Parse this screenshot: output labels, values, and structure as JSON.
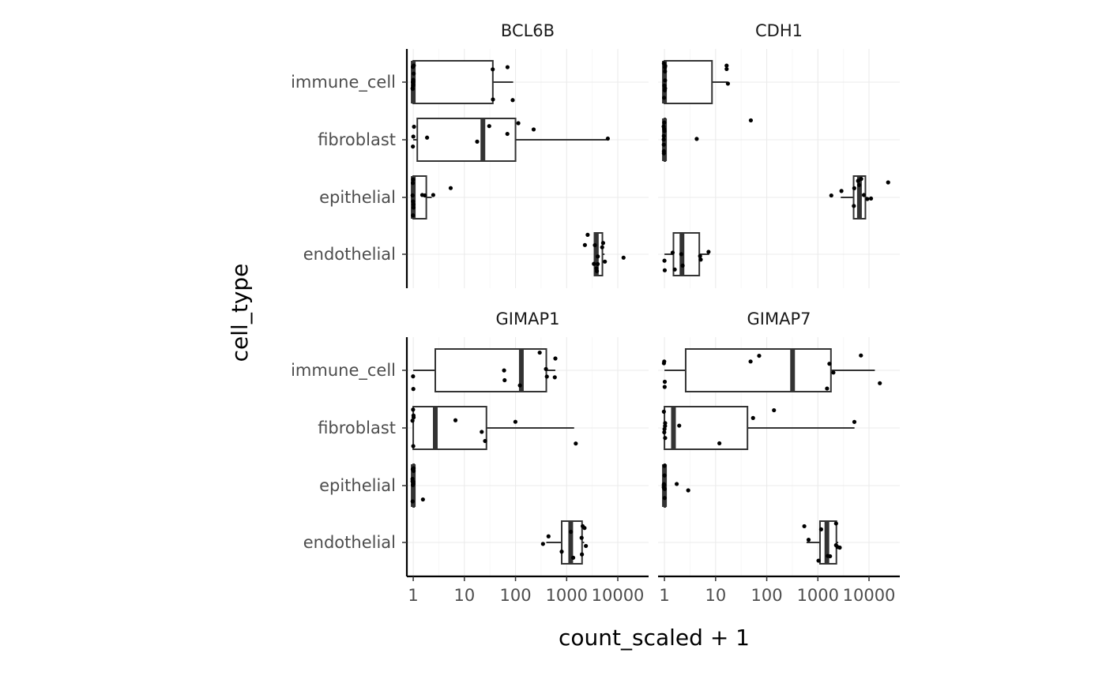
{
  "chart_data": {
    "type": "boxplot",
    "xlabel": "count_scaled + 1",
    "ylabel": "cell_type",
    "x_scale": "log10",
    "xlim": [
      0.75,
      40000
    ],
    "x_ticks": [
      1,
      10,
      100,
      1000,
      10000
    ],
    "x_tick_labels": [
      "1",
      "10",
      "100",
      "1000",
      "10000"
    ],
    "categories": [
      "immune_cell",
      "fibroblast",
      "epithelial",
      "endothelial"
    ],
    "grid": true,
    "panels": [
      {
        "title": "BCL6B",
        "boxes": [
          {
            "category": "immune_cell",
            "lower_whisker": 1,
            "q1": 1,
            "median": 1,
            "q3": 36,
            "upper_whisker": 90,
            "points": [
              1,
              1,
              1,
              1,
              1,
              1,
              1,
              1,
              1,
              1,
              37,
              35,
              70,
              90
            ]
          },
          {
            "category": "fibroblast",
            "lower_whisker": 1,
            "q1": 1.2,
            "median": 23,
            "q3": 100,
            "upper_whisker": 6000,
            "points": [
              1,
              1,
              1,
              1.9,
              18,
              30,
              70,
              110,
              220,
              6500
            ]
          },
          {
            "category": "epithelial",
            "lower_whisker": 1,
            "q1": 1,
            "median": 1,
            "q3": 1.8,
            "upper_whisker": 2.3,
            "points": [
              1,
              1,
              1,
              1,
              1,
              1,
              1,
              1.5,
              2.4,
              1.7,
              5.5
            ]
          },
          {
            "category": "endothelial",
            "lower_whisker": 3500,
            "q1": 3500,
            "median": 3800,
            "q3": 5000,
            "upper_whisker": 5500,
            "points": [
              3500,
              3500,
              3700,
              3800,
              4000,
              4200,
              5000,
              5200,
              5500,
              2200,
              2600,
              13000
            ]
          }
        ]
      },
      {
        "title": "CDH1",
        "boxes": [
          {
            "category": "immune_cell",
            "lower_whisker": 1,
            "q1": 1,
            "median": 1,
            "q3": 8.5,
            "upper_whisker": 17,
            "points": [
              1,
              1,
              1,
              1,
              1,
              1,
              1,
              1,
              1,
              17,
              17,
              17
            ]
          },
          {
            "category": "fibroblast",
            "lower_whisker": 1,
            "q1": 1,
            "median": 1,
            "q3": 1,
            "upper_whisker": 1,
            "points": [
              1,
              1,
              1,
              1,
              1,
              1,
              1,
              1,
              1,
              4.3,
              48
            ]
          },
          {
            "category": "epithelial",
            "lower_whisker": 2800,
            "q1": 5000,
            "median": 6500,
            "q3": 8500,
            "upper_whisker": 9000,
            "points": [
              1800,
              2800,
              5000,
              5200,
              6000,
              6300,
              6500,
              7000,
              8000,
              9000,
              11000,
              23000
            ]
          },
          {
            "category": "endothelial",
            "lower_whisker": 1,
            "q1": 1.5,
            "median": 2.2,
            "q3": 4.8,
            "upper_whisker": 7.5,
            "points": [
              1,
              1,
              1.4,
              1.6,
              2.1,
              2.2,
              4.8,
              5,
              7.5
            ]
          }
        ]
      },
      {
        "title": "GIMAP1",
        "boxes": [
          {
            "category": "immune_cell",
            "lower_whisker": 1,
            "q1": 2.7,
            "median": 130,
            "q3": 400,
            "upper_whisker": 600,
            "points": [
              1,
              1,
              60,
              60,
              120,
              300,
              380,
              420,
              600,
              600
            ]
          },
          {
            "category": "fibroblast",
            "lower_whisker": 1,
            "q1": 1,
            "median": 2.7,
            "q3": 27,
            "upper_whisker": 1400,
            "points": [
              1,
              1,
              1,
              1,
              1,
              6.5,
              22,
              26,
              100,
              1500
            ]
          },
          {
            "category": "epithelial",
            "lower_whisker": 1,
            "q1": 1,
            "median": 1,
            "q3": 1,
            "upper_whisker": 1,
            "points": [
              1,
              1,
              1,
              1,
              1,
              1,
              1,
              1,
              1,
              1,
              1.6
            ]
          },
          {
            "category": "endothelial",
            "lower_whisker": 400,
            "q1": 800,
            "median": 1200,
            "q3": 2000,
            "upper_whisker": 2200,
            "points": [
              350,
              450,
              800,
              1200,
              1300,
              1900,
              2000,
              2100,
              2200,
              2300
            ]
          }
        ]
      },
      {
        "title": "GIMAP7",
        "boxes": [
          {
            "category": "immune_cell",
            "lower_whisker": 1,
            "q1": 2.6,
            "median": 320,
            "q3": 1800,
            "upper_whisker": 13000,
            "points": [
              1,
              1,
              1,
              1,
              48,
              70,
              1500,
              1700,
              2000,
              7000,
              16000
            ]
          },
          {
            "category": "fibroblast",
            "lower_whisker": 1,
            "q1": 1,
            "median": 1.5,
            "q3": 42,
            "upper_whisker": 5200,
            "points": [
              1,
              1,
              1,
              1,
              1,
              1,
              2,
              12,
              55,
              140,
              5000
            ]
          },
          {
            "category": "epithelial",
            "lower_whisker": 1,
            "q1": 1,
            "median": 1,
            "q3": 1,
            "upper_whisker": 1,
            "points": [
              1,
              1,
              1,
              1,
              1,
              1,
              1,
              1,
              1,
              1.8,
              3
            ]
          },
          {
            "category": "endothelial",
            "lower_whisker": 600,
            "q1": 1100,
            "median": 1500,
            "q3": 2300,
            "upper_whisker": 2500,
            "points": [
              550,
              650,
              1000,
              1200,
              1500,
              1700,
              2200,
              2300,
              2500,
              2700
            ]
          }
        ]
      }
    ]
  }
}
